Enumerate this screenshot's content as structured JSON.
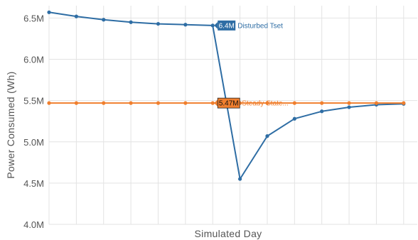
{
  "chart_data": {
    "type": "line",
    "title": "",
    "xlabel": "Simulated Day",
    "ylabel": "Power Consumed (Wh)",
    "ylim": [
      4000000,
      6650000
    ],
    "yticks": [
      4000000,
      4500000,
      5000000,
      5500000,
      6000000,
      6500000
    ],
    "ytick_labels": [
      "4.0M",
      "4.5M",
      "5.0M",
      "5.5M",
      "6.0M",
      "6.5M"
    ],
    "x": [
      1,
      2,
      3,
      4,
      5,
      6,
      7,
      8,
      9,
      10,
      11,
      12,
      13,
      14,
      15
    ],
    "xlim": [
      1,
      14.5
    ],
    "grid": true,
    "legend": "none",
    "series": [
      {
        "name": "Disturbed Tset",
        "color": "#2e6da4",
        "values": [
          6570000,
          6520000,
          6480000,
          6450000,
          6430000,
          6420000,
          6410000,
          4550000,
          5070000,
          5280000,
          5370000,
          5420000,
          5450000,
          5460000,
          5470000
        ],
        "label_index": 6,
        "label_value_text": "6.4M",
        "label_name_text": "Disturbed Tset"
      },
      {
        "name": "Steady State...",
        "color": "#f07f2e",
        "values": [
          5470000,
          5470000,
          5470000,
          5470000,
          5470000,
          5470000,
          5470000,
          5470000,
          5470000,
          5470000,
          5470000,
          5470000,
          5470000,
          5470000,
          5470000
        ],
        "label_index": 6,
        "label_value_text": "5.47M",
        "label_name_text": "Steady State..."
      }
    ]
  }
}
